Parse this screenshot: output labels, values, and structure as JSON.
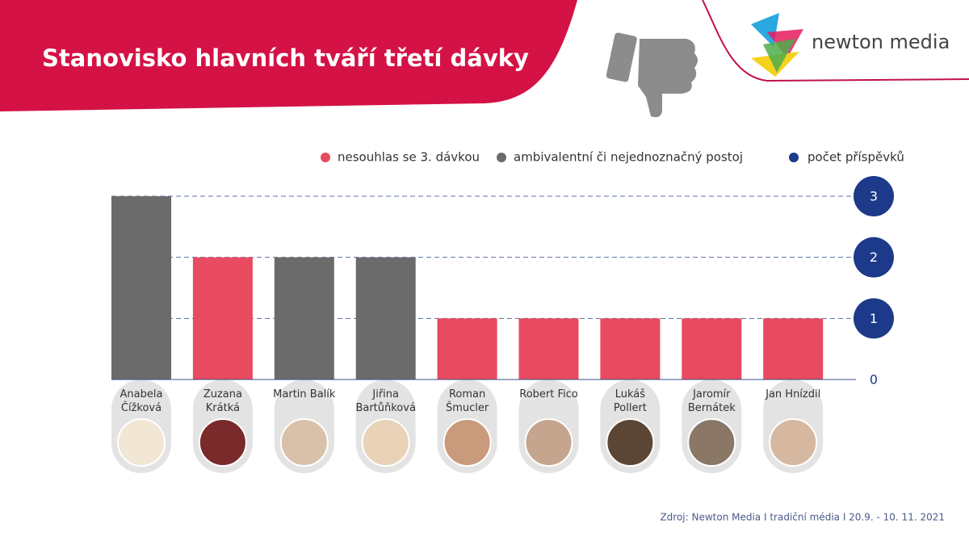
{
  "header": {
    "title": "Stanovisko hlavních tváří třetí dávky",
    "logo": "newton media"
  },
  "chart_data": {
    "type": "bar",
    "categories": [
      "Anabela Čížková",
      "Zuzana Krátká",
      "Martin Balík",
      "Jiřina Bartůňková",
      "Roman Šmucler",
      "Robert Fico",
      "Lukáš Pollert",
      "Jaromír Bernátek",
      "Jan Hnízdil"
    ],
    "series": [
      {
        "name": "nesouhlas se 3. dávkou",
        "color": "#e84a5f",
        "values": [
          null,
          2,
          null,
          null,
          1,
          1,
          1,
          1,
          1
        ]
      },
      {
        "name": "ambivalentní či nejednoznačný postoj",
        "color": "#6b6b6b",
        "values": [
          3,
          null,
          2,
          2,
          null,
          null,
          null,
          null,
          null
        ]
      }
    ],
    "y_axis_label": "počet příspěvků",
    "y_axis_color": "#1d3a8a",
    "ylim": [
      0,
      3
    ],
    "yticks": [
      0,
      1,
      2,
      3
    ],
    "grid": true
  },
  "footer": {
    "source": "Zdroj: Newton Media  I  tradiční média  I  20.9. - 10. 11. 2021"
  }
}
